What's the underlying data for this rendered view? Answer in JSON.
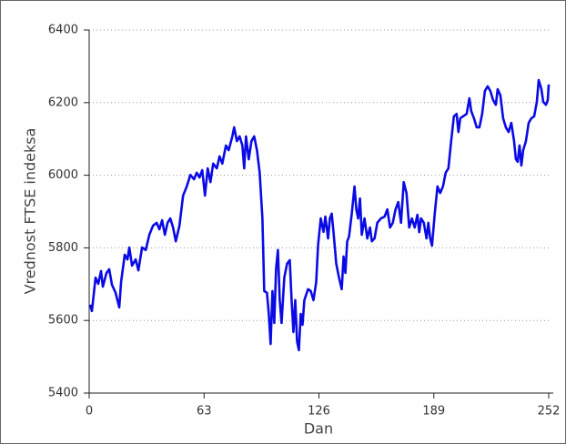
{
  "chart_data": {
    "type": "line",
    "xlabel": "Dan",
    "ylabel": "Vrednost FTSE indeksa",
    "x": [
      0.5,
      1.5,
      3.5,
      5,
      6.5,
      7.5,
      9.5,
      11,
      12.5,
      14.5,
      16.5,
      17.5,
      19.5,
      21,
      22,
      23.5,
      25.5,
      27,
      29,
      31,
      33,
      35,
      37,
      38.5,
      40,
      41.5,
      43,
      44.5,
      46,
      47.5,
      49.5,
      51.5,
      53.5,
      55.5,
      57.5,
      59,
      60.5,
      62,
      63.5,
      65,
      66.5,
      68,
      70,
      71.5,
      73,
      75,
      76.5,
      78.5,
      79.5,
      81,
      82.5,
      84,
      85,
      86,
      87.5,
      89,
      90.5,
      92,
      93.5,
      95,
      96,
      97.5,
      98.5,
      99.5,
      100.5,
      101.5,
      102.5,
      103.5,
      104.5,
      105.5,
      107,
      108.5,
      110,
      111,
      112,
      113,
      114,
      115,
      116,
      117,
      118,
      120,
      121.5,
      123,
      124.5,
      125.5,
      127,
      128.5,
      129.5,
      131,
      132,
      133,
      134,
      135.5,
      137,
      138.5,
      139.5,
      140.5,
      141.5,
      142.5,
      144,
      145.5,
      146.5,
      147.5,
      148.5,
      149.5,
      151,
      152.5,
      154,
      155,
      156.5,
      158,
      160,
      162,
      163.5,
      165,
      166.5,
      168,
      169.5,
      171,
      172.5,
      174,
      175.5,
      177,
      178.5,
      180,
      181,
      182,
      183.5,
      185,
      186,
      187,
      188,
      189.5,
      191,
      192.5,
      194,
      195.5,
      197,
      198.5,
      200,
      201.5,
      202.5,
      203.5,
      205,
      207,
      208.5,
      209.5,
      211,
      212.5,
      214,
      215.5,
      217,
      218.5,
      220,
      221.5,
      223,
      224,
      225.5,
      227,
      228.5,
      230,
      231.5,
      233,
      234,
      235,
      236,
      237,
      238,
      239.5,
      241,
      242.5,
      244,
      245.5,
      246.5,
      248,
      249,
      250.5,
      251.5,
      252
    ],
    "series": [
      {
        "name": "FTSE",
        "color": "#0a0ae6",
        "values": [
          5643,
          5626,
          5718,
          5701,
          5736,
          5693,
          5731,
          5741,
          5698,
          5676,
          5636,
          5706,
          5781,
          5768,
          5801,
          5751,
          5768,
          5738,
          5801,
          5794,
          5836,
          5861,
          5869,
          5851,
          5876,
          5836,
          5869,
          5881,
          5856,
          5818,
          5861,
          5944,
          5969,
          6001,
          5989,
          6007,
          5994,
          6014,
          5944,
          6019,
          5981,
          6032,
          6019,
          6052,
          6032,
          6082,
          6069,
          6107,
          6132,
          6094,
          6107,
          6082,
          6019,
          6107,
          6044,
          6094,
          6107,
          6069,
          6007,
          5881,
          5681,
          5676,
          5618,
          5535,
          5681,
          5593,
          5743,
          5794,
          5656,
          5593,
          5718,
          5756,
          5766,
          5656,
          5568,
          5656,
          5543,
          5518,
          5618,
          5588,
          5656,
          5686,
          5681,
          5656,
          5706,
          5806,
          5881,
          5844,
          5886,
          5826,
          5881,
          5894,
          5843,
          5756,
          5718,
          5686,
          5776,
          5731,
          5818,
          5831,
          5894,
          5969,
          5906,
          5881,
          5936,
          5836,
          5881,
          5826,
          5856,
          5818,
          5826,
          5869,
          5881,
          5886,
          5906,
          5856,
          5869,
          5906,
          5926,
          5869,
          5981,
          5951,
          5856,
          5881,
          5856,
          5891,
          5843,
          5881,
          5869,
          5826,
          5869,
          5826,
          5806,
          5894,
          5969,
          5951,
          5969,
          6007,
          6019,
          6094,
          6162,
          6169,
          6119,
          6157,
          6162,
          6169,
          6212,
          6177,
          6157,
          6132,
          6132,
          6169,
          6232,
          6245,
          6232,
          6207,
          6194,
          6237,
          6220,
          6157,
          6132,
          6119,
          6144,
          6094,
          6044,
          6037,
          6082,
          6027,
          6069,
          6094,
          6144,
          6157,
          6162,
          6202,
          6262,
          6237,
          6202,
          6194,
          6207,
          6250
        ]
      }
    ],
    "xlim": [
      0,
      252
    ],
    "xticks": [
      0,
      63,
      126,
      189,
      252
    ],
    "ylim": [
      5400,
      6400
    ],
    "yticks": [
      5400,
      5600,
      5800,
      6000,
      6200,
      6400
    ],
    "grid": true
  }
}
